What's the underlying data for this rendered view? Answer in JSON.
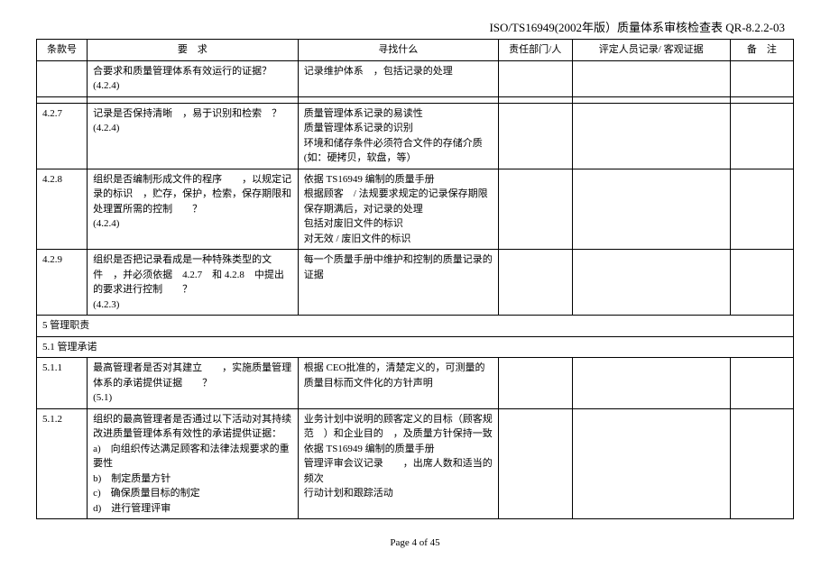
{
  "header": {
    "title": "ISO/TS16949(2002年版）质量体系审核检查表",
    "doc_no": "QR-8.2.2-03"
  },
  "columns": {
    "clause": "条款号",
    "requirement": "要　求",
    "find": "寻找什么",
    "dept": "责任部门/人",
    "record": "评定人员记录/ 客观证据",
    "remark": "备　注"
  },
  "rows": [
    {
      "clause": "",
      "requirement": "合要求和质量管理体系有效运行的证据？\n(4.2.4)",
      "find": "记录维护体系　，包括记录的处理",
      "dept": "",
      "record": "",
      "remark": ""
    },
    {
      "clause": "",
      "requirement": "",
      "find": "",
      "dept": "",
      "record": "",
      "remark": ""
    },
    {
      "clause": "4.2.7",
      "requirement": "记录是否保持清晰　，易于识别和检索　？\n(4.2.4)",
      "find": "质量管理体系记录的易读性\n质量管理体系记录的识别\n环境和储存条件必须符合文件的存储介质　(如：硬拷贝，软盘，等）",
      "dept": "",
      "record": "",
      "remark": ""
    },
    {
      "clause": "4.2.8",
      "requirement": "组织是否编制形成文件的程序　　，以规定记录的标识　，贮存，保护，检索，保存期限和处理置所需的控制　　？\n(4.2.4)",
      "find": "依据 TS16949 编制的质量手册\n根据顾客　/ 法规要求规定的记录保存期限\n保存期满后，对记录的处理\n包括对废旧文件的标识\n对无效 / 废旧文件的标识",
      "dept": "",
      "record": "",
      "remark": ""
    },
    {
      "clause": "4.2.9",
      "requirement": "组织是否把记录看成是一种特殊类型的文件　，并必须依据　4.2.7　和 4.2.8　中提出的要求进行控制　　？\n(4.2.3)",
      "find": "每一个质量手册中维护和控制的质量记录的证据",
      "dept": "",
      "record": "",
      "remark": ""
    }
  ],
  "sections": [
    {
      "label": "5 管理职责"
    },
    {
      "label": "5.1 管理承诺"
    }
  ],
  "rows2": [
    {
      "clause": "5.1.1",
      "requirement": "最高管理者是否对其建立　　，实施质量管理体系的承诺提供证据　　？\n(5.1)",
      "find": "根据 CEO批准的，清楚定义的，可测量的质量目标而文件化的方针声明",
      "dept": "",
      "record": "",
      "remark": ""
    },
    {
      "clause": "5.1.2",
      "requirement": "组织的最高管理者是否通过以下活动对其持续改进质量管理体系有效性的承诺提供证据：\na)　向组织传达满足顾客和法律法规要求的重要性\nb)　制定质量方针\nc)　确保质量目标的制定\nd)　进行管理评审",
      "find": "业务计划中说明的顾客定义的目标（顾客规范　）和企业目的　，及质量方针保持一致\n依据 TS16949 编制的质量手册\n管理评审会议记录　　，出席人数和适当的频次\n行动计划和跟踪活动",
      "dept": "",
      "record": "",
      "remark": ""
    }
  ],
  "footer": {
    "page": "Page 4 of 45"
  }
}
